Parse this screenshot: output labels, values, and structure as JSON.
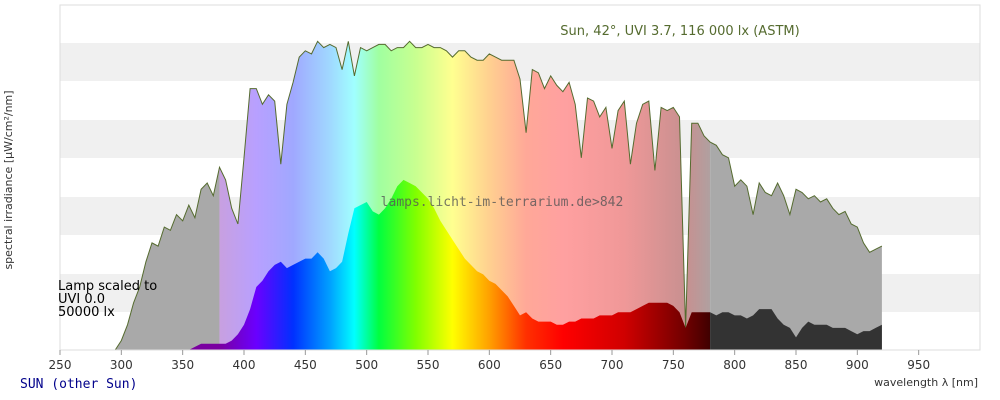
{
  "footer_link": "SUN (other Sun)",
  "chart_data": {
    "type": "area",
    "title": "Sun, 42°, UVI 3.7, 116 000 lx (ASTM)",
    "watermark": "lamps.licht-im-terrarium.de>842",
    "xlabel": "wavelength λ [nm]",
    "ylabel": "spectral irradiance [µW/cm²/nm]",
    "xlim": [
      250,
      1000
    ],
    "x_ticks": [
      250,
      300,
      350,
      400,
      450,
      500,
      550,
      600,
      650,
      700,
      750,
      800,
      850,
      900,
      950
    ],
    "y_ticks_labeled": false,
    "grid": "horizontal bands",
    "legend": {
      "line1": "Lamp scaled to",
      "line2": "UVI 0.0",
      "line3": "50000 lx",
      "position": "left"
    },
    "colors": {
      "sun_outline": "#556b2f",
      "lamp_ir": "#333333",
      "sun_ir": "#a9a9a9",
      "sun_uv": "#a9a9a9",
      "band": "#f0f0f0"
    },
    "series": [
      {
        "name": "Sun, 42°, UVI 3.7, 116 000 lx (ASTM)",
        "x": [
          295,
          300,
          305,
          310,
          315,
          320,
          325,
          330,
          335,
          340,
          345,
          350,
          355,
          360,
          365,
          370,
          375,
          380,
          385,
          390,
          395,
          400,
          405,
          410,
          415,
          420,
          425,
          430,
          435,
          440,
          445,
          450,
          455,
          460,
          465,
          470,
          475,
          480,
          485,
          490,
          495,
          500,
          505,
          510,
          515,
          520,
          525,
          530,
          535,
          540,
          545,
          550,
          555,
          560,
          565,
          570,
          575,
          580,
          585,
          590,
          595,
          600,
          605,
          610,
          615,
          620,
          625,
          630,
          635,
          640,
          645,
          650,
          655,
          660,
          665,
          670,
          675,
          680,
          685,
          690,
          695,
          700,
          705,
          710,
          715,
          720,
          725,
          730,
          735,
          740,
          745,
          750,
          755,
          760,
          765,
          770,
          775,
          780,
          785,
          790,
          795,
          800,
          805,
          810,
          815,
          820,
          825,
          830,
          835,
          840,
          845,
          850,
          855,
          860,
          865,
          870,
          875,
          880,
          885,
          890,
          895,
          900,
          905,
          910,
          915,
          920
        ],
        "values": [
          0,
          3,
          8,
          15,
          20,
          28,
          34,
          33,
          39,
          38,
          43,
          41,
          46,
          42,
          51,
          53,
          49,
          58,
          54,
          45,
          40,
          61,
          83,
          83,
          78,
          81,
          79,
          59,
          78,
          85,
          93,
          95,
          94,
          98,
          96,
          97,
          96,
          89,
          98,
          87,
          96,
          95,
          96,
          97,
          97,
          95,
          96,
          96,
          98,
          96,
          96,
          97,
          96,
          96,
          95,
          93,
          95,
          95,
          93,
          92,
          92,
          94,
          93,
          92,
          92,
          92,
          86,
          69,
          89,
          88,
          83,
          87,
          84,
          82,
          85,
          78,
          61,
          80,
          79,
          74,
          77,
          64,
          76,
          79,
          59,
          72,
          78,
          79,
          57,
          77,
          76,
          77,
          74,
          7,
          72,
          72,
          68,
          66,
          65,
          62,
          61,
          52,
          54,
          52,
          43,
          53,
          50,
          49,
          53,
          49,
          43,
          51,
          50,
          48,
          49,
          47,
          48,
          45,
          43,
          44,
          40,
          39,
          34,
          31,
          32,
          33
        ]
      },
      {
        "name": "Lamp scaled to UVI 0.0, 50000 lx",
        "x": [
          355,
          360,
          365,
          370,
          375,
          380,
          385,
          390,
          395,
          400,
          405,
          410,
          415,
          420,
          425,
          430,
          435,
          440,
          445,
          450,
          455,
          460,
          465,
          470,
          475,
          480,
          485,
          490,
          495,
          500,
          505,
          510,
          515,
          520,
          525,
          530,
          535,
          540,
          545,
          550,
          555,
          560,
          565,
          570,
          575,
          580,
          585,
          590,
          595,
          600,
          605,
          610,
          615,
          620,
          625,
          630,
          635,
          640,
          645,
          650,
          655,
          660,
          665,
          670,
          675,
          680,
          685,
          690,
          695,
          700,
          705,
          710,
          715,
          720,
          725,
          730,
          735,
          740,
          745,
          750,
          755,
          760,
          765,
          770,
          775,
          780,
          785,
          790,
          795,
          800,
          805,
          810,
          815,
          820,
          825,
          830,
          835,
          840,
          845,
          850,
          855,
          860,
          865,
          870,
          875,
          880,
          885,
          890,
          895,
          900,
          905,
          910,
          915,
          920
        ],
        "values": [
          0,
          1,
          2,
          2,
          2,
          2,
          2,
          3,
          5,
          8,
          13,
          20,
          22,
          25,
          27,
          28,
          26,
          27,
          28,
          29,
          29,
          31,
          29,
          25,
          26,
          28,
          37,
          45,
          46,
          47,
          44,
          43,
          45,
          48,
          52,
          54,
          53,
          52,
          50,
          48,
          45,
          41,
          38,
          35,
          32,
          29,
          27,
          25,
          24,
          22,
          21,
          19,
          17,
          14,
          11,
          12,
          10,
          9,
          9,
          9,
          8,
          8,
          9,
          9,
          10,
          10,
          10,
          11,
          11,
          11,
          12,
          12,
          12,
          13,
          14,
          15,
          15,
          15,
          15,
          14,
          12,
          7,
          12,
          12,
          12,
          12,
          11,
          12,
          12,
          11,
          11,
          10,
          11,
          13,
          13,
          13,
          10,
          8,
          7,
          4,
          7,
          9,
          8,
          8,
          8,
          7,
          7,
          7,
          6,
          5,
          6,
          6,
          7,
          8
        ]
      }
    ]
  }
}
